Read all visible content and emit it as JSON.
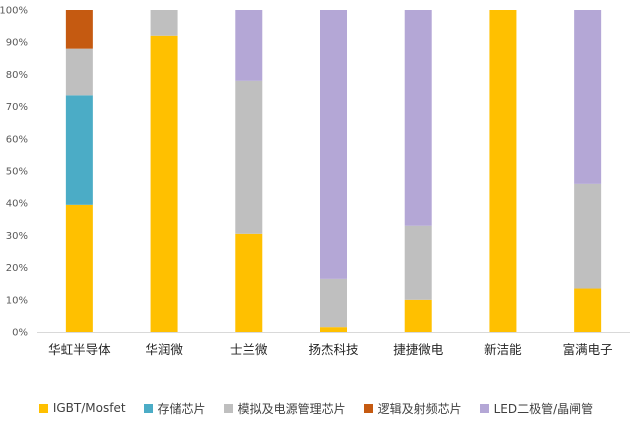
{
  "chart_data": {
    "type": "bar",
    "stacked": true,
    "percent": true,
    "categories": [
      "华虹半导体",
      "华润微",
      "士兰微",
      "扬杰科技",
      "捷捷微电",
      "新洁能",
      "富满电子"
    ],
    "series": [
      {
        "name": "IGBT/Mosfet",
        "color": "#FFC000",
        "values": [
          39.5,
          92,
          30.5,
          1.5,
          10,
          100,
          13.5
        ]
      },
      {
        "name": "存储芯片",
        "color": "#4BACC6",
        "values": [
          34,
          0,
          0,
          0,
          0,
          0,
          0
        ]
      },
      {
        "name": "模拟及电源管理芯片",
        "color": "#BFBFBF",
        "values": [
          14.5,
          8,
          47.5,
          15,
          23,
          0,
          32.5
        ]
      },
      {
        "name": "逻辑及射频芯片",
        "color": "#C55A11",
        "values": [
          12,
          0,
          0,
          0,
          0,
          0,
          0
        ]
      },
      {
        "name": "LED二极管/晶闸管",
        "color": "#B4A7D6",
        "values": [
          0,
          0,
          22,
          83.5,
          67,
          0,
          54
        ]
      }
    ],
    "ylim": [
      0,
      100
    ],
    "yticks": [
      "0%",
      "10%",
      "20%",
      "30%",
      "40%",
      "50%",
      "60%",
      "70%",
      "80%",
      "90%",
      "100%"
    ],
    "grid": false,
    "legend_position": "bottom"
  }
}
